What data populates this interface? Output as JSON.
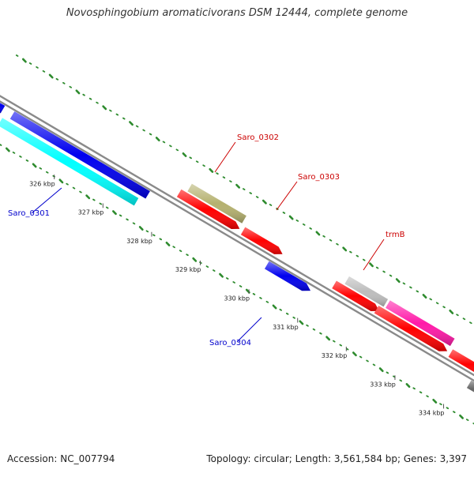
{
  "title": "Novosphingobium aromaticivorans DSM 12444, complete genome",
  "accession": "Accession: NC_007794",
  "topology": "Topology: circular; Length: 3,561,584 bp; Genes: 3,397",
  "ticks": [
    {
      "label": "326 kbp",
      "kbp": 326
    },
    {
      "label": "327 kbp",
      "kbp": 327
    },
    {
      "label": "328 kbp",
      "kbp": 328
    },
    {
      "label": "329 kbp",
      "kbp": 329
    },
    {
      "label": "330 kbp",
      "kbp": 330
    },
    {
      "label": "331 kbp",
      "kbp": 331
    },
    {
      "label": "332 kbp",
      "kbp": 332
    },
    {
      "label": "333 kbp",
      "kbp": 333
    },
    {
      "label": "334 kbp",
      "kbp": 334
    }
  ],
  "gene_labels": [
    {
      "name": "Saro_0301",
      "color": "#0000cc"
    },
    {
      "name": "Saro_0302",
      "color": "#cc0000"
    },
    {
      "name": "Saro_0303",
      "color": "#cc0000"
    },
    {
      "name": "trmB",
      "color": "#cc0000"
    },
    {
      "name": "Saro_0304",
      "color": "#0000cc"
    }
  ],
  "colors": {
    "forward_gene": "#ff0000",
    "reverse_gene": "#0000ee",
    "backbone": "#8a8a8a",
    "gc_dots": "#2e8b2e",
    "cyan_feature": "#00ffff",
    "olive_feature": "#b5b16f",
    "grey_feature": "#bdbdbd",
    "magenta_feature": "#ff1aa8"
  }
}
